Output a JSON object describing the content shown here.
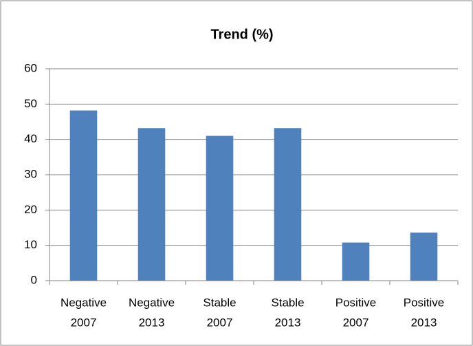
{
  "chart_data": {
    "type": "bar",
    "title": "Trend (%)",
    "categories": [
      [
        "Negative",
        "2007"
      ],
      [
        "Negative",
        "2013"
      ],
      [
        "Stable",
        "2007"
      ],
      [
        "Stable",
        "2013"
      ],
      [
        "Positive",
        "2007"
      ],
      [
        "Positive",
        "2013"
      ]
    ],
    "values": [
      48.2,
      43.2,
      41,
      43.2,
      10.8,
      13.6
    ],
    "color": "#4f81bd",
    "ylim": [
      0,
      60
    ],
    "yticks": [
      0,
      10,
      20,
      30,
      40,
      50,
      60
    ],
    "grid": true
  }
}
